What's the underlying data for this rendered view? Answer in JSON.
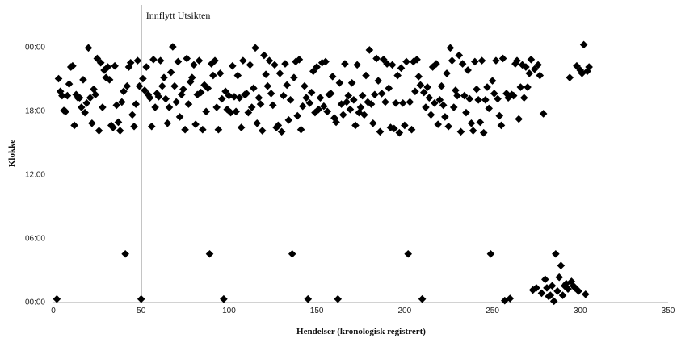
{
  "chart_data": {
    "type": "scatter",
    "title": "",
    "xlabel": "Hendelser (kronologisk registrert)",
    "ylabel": "Klokke",
    "xlim": [
      0,
      350
    ],
    "ylim": [
      0,
      24
    ],
    "x_ticks": [
      0,
      50,
      100,
      150,
      200,
      250,
      300,
      350
    ],
    "y_ticks": [
      {
        "value": 0,
        "label": "00:00"
      },
      {
        "value": 6,
        "label": "06:00"
      },
      {
        "value": 12,
        "label": "12:00"
      },
      {
        "value": 18,
        "label": "18:00"
      },
      {
        "value": 24,
        "label": "00:00"
      }
    ],
    "gridlines": false,
    "legend": "none",
    "marker": "diamond",
    "marker_color": "#000000",
    "annotations": [
      {
        "x": 50,
        "label": "Innflytt Utsikten",
        "style": "vertical-line"
      }
    ],
    "series": [
      {
        "points": [
          [
            2,
            0.25
          ],
          [
            3,
            21
          ],
          [
            4,
            19.8
          ],
          [
            5,
            19.4
          ],
          [
            6,
            18
          ],
          [
            7,
            17.9
          ],
          [
            8,
            19.4
          ],
          [
            9,
            20.5
          ],
          [
            10,
            22.1
          ],
          [
            11,
            22.2
          ],
          [
            12,
            16.6
          ],
          [
            13,
            19.5
          ],
          [
            14,
            19.2
          ],
          [
            15,
            19.2
          ],
          [
            16,
            18.3
          ],
          [
            17,
            20.9
          ],
          [
            18,
            17.8
          ],
          [
            19,
            18.7
          ],
          [
            20,
            23.9
          ],
          [
            21,
            19.2
          ],
          [
            22,
            16.8
          ],
          [
            23,
            20
          ],
          [
            24,
            19.5
          ],
          [
            25,
            22.9
          ],
          [
            26,
            16.1
          ],
          [
            27,
            22.5
          ],
          [
            28,
            18.3
          ],
          [
            29,
            21.8
          ],
          [
            30,
            21.1
          ],
          [
            31,
            22.1
          ],
          [
            32,
            20.9
          ],
          [
            33,
            16.6
          ],
          [
            34,
            16.4
          ],
          [
            35,
            22.2
          ],
          [
            36,
            18.5
          ],
          [
            37,
            16.9
          ],
          [
            38,
            16.1
          ],
          [
            39,
            18.8
          ],
          [
            40,
            19.8
          ],
          [
            41,
            4.5
          ],
          [
            42,
            20.3
          ],
          [
            43,
            22.1
          ],
          [
            44,
            22.5
          ],
          [
            45,
            17.6
          ],
          [
            46,
            16.5
          ],
          [
            47,
            18.6
          ],
          [
            48,
            22.7
          ],
          [
            49,
            20.3
          ],
          [
            50,
            0.25
          ],
          [
            51,
            21
          ],
          [
            52,
            19.9
          ],
          [
            53,
            22.1
          ],
          [
            54,
            19.5
          ],
          [
            55,
            19.2
          ],
          [
            56,
            16.5
          ],
          [
            57,
            22.8
          ],
          [
            58,
            18.3
          ],
          [
            59,
            19.6
          ],
          [
            60,
            19.3
          ],
          [
            61,
            22.7
          ],
          [
            62,
            20.3
          ],
          [
            63,
            21.1
          ],
          [
            64,
            19.1
          ],
          [
            65,
            16.8
          ],
          [
            66,
            18.3
          ],
          [
            67,
            21.6
          ],
          [
            68,
            24
          ],
          [
            69,
            20.3
          ],
          [
            70,
            18.8
          ],
          [
            71,
            22.6
          ],
          [
            72,
            17.4
          ],
          [
            73,
            19.5
          ],
          [
            74,
            20
          ],
          [
            75,
            16.2
          ],
          [
            76,
            22.9
          ],
          [
            77,
            18.6
          ],
          [
            78,
            20.7
          ],
          [
            79,
            21.1
          ],
          [
            80,
            22.3
          ],
          [
            81,
            16.7
          ],
          [
            82,
            19.5
          ],
          [
            83,
            22.7
          ],
          [
            84,
            19.7
          ],
          [
            85,
            16.2
          ],
          [
            86,
            20.4
          ],
          [
            87,
            17.9
          ],
          [
            88,
            20.1
          ],
          [
            89,
            4.5
          ],
          [
            90,
            22.4
          ],
          [
            91,
            21.3
          ],
          [
            92,
            22.7
          ],
          [
            93,
            18.3
          ],
          [
            94,
            16.2
          ],
          [
            95,
            21.5
          ],
          [
            96,
            19.1
          ],
          [
            97,
            0.25
          ],
          [
            98,
            19.8
          ],
          [
            99,
            18.1
          ],
          [
            100,
            19.4
          ],
          [
            101,
            17.8
          ],
          [
            102,
            22.2
          ],
          [
            103,
            19.3
          ],
          [
            104,
            17.9
          ],
          [
            105,
            21.3
          ],
          [
            106,
            19.2
          ],
          [
            107,
            16.4
          ],
          [
            108,
            22.7
          ],
          [
            109,
            19.5
          ],
          [
            110,
            19.6
          ],
          [
            111,
            17.8
          ],
          [
            112,
            22.3
          ],
          [
            113,
            18.3
          ],
          [
            114,
            20.1
          ],
          [
            115,
            23.9
          ],
          [
            116,
            16.8
          ],
          [
            117,
            19.2
          ],
          [
            118,
            18.6
          ],
          [
            119,
            16.1
          ],
          [
            120,
            23.2
          ],
          [
            121,
            21.4
          ],
          [
            122,
            20.3
          ],
          [
            123,
            22.7
          ],
          [
            124,
            19.6
          ],
          [
            125,
            18.5
          ],
          [
            126,
            22.3
          ],
          [
            127,
            16.4
          ],
          [
            128,
            16.6
          ],
          [
            129,
            21.5
          ],
          [
            130,
            16
          ],
          [
            131,
            19.4
          ],
          [
            132,
            22.4
          ],
          [
            133,
            20.4
          ],
          [
            134,
            17.1
          ],
          [
            135,
            19
          ],
          [
            136,
            4.5
          ],
          [
            137,
            21.1
          ],
          [
            138,
            22.6
          ],
          [
            139,
            17.5
          ],
          [
            140,
            22.8
          ],
          [
            141,
            16.2
          ],
          [
            142,
            18.4
          ],
          [
            143,
            20.3
          ],
          [
            144,
            19.2
          ],
          [
            145,
            0.25
          ],
          [
            146,
            18.7
          ],
          [
            147,
            19.7
          ],
          [
            148,
            21.7
          ],
          [
            149,
            17.8
          ],
          [
            150,
            22.1
          ],
          [
            151,
            18.1
          ],
          [
            152,
            19.2
          ],
          [
            153,
            22.5
          ],
          [
            154,
            18.4
          ],
          [
            155,
            22.6
          ],
          [
            156,
            17.9
          ],
          [
            157,
            19.5
          ],
          [
            158,
            19.6
          ],
          [
            159,
            21.2
          ],
          [
            160,
            17.3
          ],
          [
            161,
            16.9
          ],
          [
            162,
            0.25
          ],
          [
            163,
            20.6
          ],
          [
            164,
            18.6
          ],
          [
            165,
            17.6
          ],
          [
            166,
            22.4
          ],
          [
            167,
            18.8
          ],
          [
            168,
            19.4
          ],
          [
            169,
            18.1
          ],
          [
            170,
            20.6
          ],
          [
            171,
            19
          ],
          [
            172,
            16.6
          ],
          [
            173,
            22.3
          ],
          [
            174,
            17.8
          ],
          [
            175,
            18.3
          ],
          [
            176,
            19.4
          ],
          [
            177,
            17.6
          ],
          [
            178,
            21.3
          ],
          [
            179,
            18.8
          ],
          [
            180,
            23.7
          ],
          [
            181,
            18.6
          ],
          [
            182,
            16.8
          ],
          [
            183,
            19.5
          ],
          [
            184,
            22.9
          ],
          [
            185,
            20.8
          ],
          [
            186,
            16
          ],
          [
            187,
            19.6
          ],
          [
            188,
            22.8
          ],
          [
            189,
            18.8
          ],
          [
            190,
            22.4
          ],
          [
            191,
            20.1
          ],
          [
            192,
            16.4
          ],
          [
            193,
            22.3
          ],
          [
            194,
            16.3
          ],
          [
            195,
            18.7
          ],
          [
            196,
            21.3
          ],
          [
            197,
            15.9
          ],
          [
            198,
            22
          ],
          [
            199,
            18.7
          ],
          [
            200,
            16.6
          ],
          [
            201,
            22.6
          ],
          [
            202,
            4.5
          ],
          [
            203,
            18.8
          ],
          [
            204,
            16.2
          ],
          [
            205,
            22.6
          ],
          [
            206,
            19.8
          ],
          [
            207,
            22.8
          ],
          [
            208,
            21.2
          ],
          [
            209,
            20.4
          ],
          [
            210,
            0.25
          ],
          [
            211,
            19.7
          ],
          [
            212,
            18.3
          ],
          [
            213,
            20.2
          ],
          [
            214,
            19.2
          ],
          [
            215,
            17.6
          ],
          [
            216,
            22.1
          ],
          [
            217,
            18.7
          ],
          [
            218,
            22.4
          ],
          [
            219,
            16.7
          ],
          [
            220,
            19
          ],
          [
            221,
            20.3
          ],
          [
            222,
            18.5
          ],
          [
            223,
            17.4
          ],
          [
            224,
            21.5
          ],
          [
            225,
            16.5
          ],
          [
            226,
            23.9
          ],
          [
            227,
            22.7
          ],
          [
            228,
            18.3
          ],
          [
            229,
            19.9
          ],
          [
            230,
            19.4
          ],
          [
            231,
            23.2
          ],
          [
            232,
            16
          ],
          [
            233,
            22.4
          ],
          [
            234,
            19.4
          ],
          [
            235,
            17.8
          ],
          [
            236,
            21.8
          ],
          [
            237,
            19.1
          ],
          [
            238,
            16.8
          ],
          [
            239,
            16.1
          ],
          [
            240,
            22.6
          ],
          [
            241,
            20
          ],
          [
            242,
            19
          ],
          [
            243,
            16.9
          ],
          [
            244,
            22.7
          ],
          [
            245,
            15.9
          ],
          [
            246,
            19
          ],
          [
            247,
            20.2
          ],
          [
            248,
            18.2
          ],
          [
            249,
            4.5
          ],
          [
            250,
            20.8
          ],
          [
            251,
            19.6
          ],
          [
            252,
            22.7
          ],
          [
            253,
            19.1
          ],
          [
            254,
            17.5
          ],
          [
            255,
            16.6
          ],
          [
            256,
            22.9
          ],
          [
            257,
            0.1
          ],
          [
            258,
            19.6
          ],
          [
            259,
            19.2
          ],
          [
            260,
            0.3
          ],
          [
            261,
            19.5
          ],
          [
            262,
            19.4
          ],
          [
            263,
            22.4
          ],
          [
            264,
            22.7
          ],
          [
            265,
            17.2
          ],
          [
            266,
            20.2
          ],
          [
            267,
            22.3
          ],
          [
            268,
            19.2
          ],
          [
            269,
            22.1
          ],
          [
            270,
            20.2
          ],
          [
            271,
            21.5
          ],
          [
            272,
            22.8
          ],
          [
            273,
            1.1
          ],
          [
            274,
            21.9
          ],
          [
            275,
            1.3
          ],
          [
            276,
            22.3
          ],
          [
            277,
            21.3
          ],
          [
            278,
            0.8
          ],
          [
            279,
            17.7
          ],
          [
            280,
            2.1
          ],
          [
            281,
            1.3
          ],
          [
            282,
            0.5
          ],
          [
            283,
            0.6
          ],
          [
            284,
            1.5
          ],
          [
            285,
            0.05
          ],
          [
            286,
            4.5
          ],
          [
            287,
            1
          ],
          [
            288,
            2.3
          ],
          [
            289,
            3.4
          ],
          [
            290,
            0.6
          ],
          [
            291,
            1.5
          ],
          [
            292,
            1.7
          ],
          [
            293,
            1.2
          ],
          [
            294,
            21.1
          ],
          [
            295,
            1.9
          ],
          [
            296,
            1.5
          ],
          [
            297,
            1.3
          ],
          [
            298,
            22.2
          ],
          [
            299,
            1
          ],
          [
            300,
            21.8
          ],
          [
            301,
            21.5
          ],
          [
            302,
            24.2
          ],
          [
            303,
            0.7
          ],
          [
            304,
            21.7
          ],
          [
            305,
            22.1
          ]
        ]
      }
    ]
  }
}
